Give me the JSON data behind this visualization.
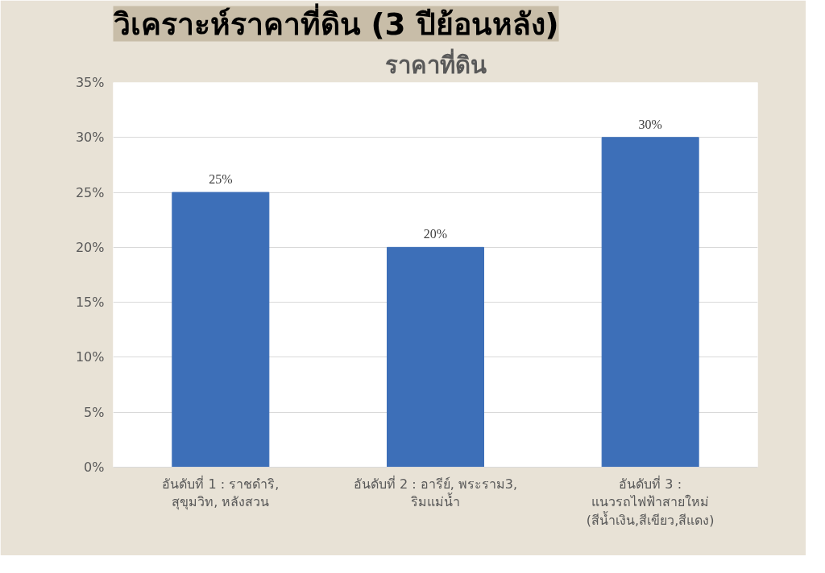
{
  "chart_data": {
    "type": "bar",
    "title": "วิเคราะห์ราคาที่ดิน (3 ปีย้อนหลัง)",
    "subtitle": "ราคาที่ดิน",
    "categories": [
      "อันดับที่ 1 : ราชดำริ, สุขุมวิท, หลังสวน",
      "อันดับที่ 2 : อารีย์, พระราม3, ริมแม่น้ำ",
      "อันดับที่ 3 : แนวรถไฟฟ้าสายใหม่ (สีน้ำเงิน,สีเขียว,สีแดง)"
    ],
    "values": [
      25,
      20,
      30
    ],
    "color": "#3d6fb8",
    "value_labels": [
      "25%",
      "20%",
      "30%"
    ],
    "ylim": [
      0,
      35
    ],
    "yticks": [
      {
        "value": 0,
        "label": "0%"
      },
      {
        "value": 5,
        "label": "5%"
      },
      {
        "value": 10,
        "label": "10%"
      },
      {
        "value": 15,
        "label": "15%"
      },
      {
        "value": 20,
        "label": "20%"
      },
      {
        "value": 25,
        "label": "25%"
      },
      {
        "value": 30,
        "label": "30%"
      },
      {
        "value": 35,
        "label": "35%"
      }
    ],
    "grid": "y"
  }
}
